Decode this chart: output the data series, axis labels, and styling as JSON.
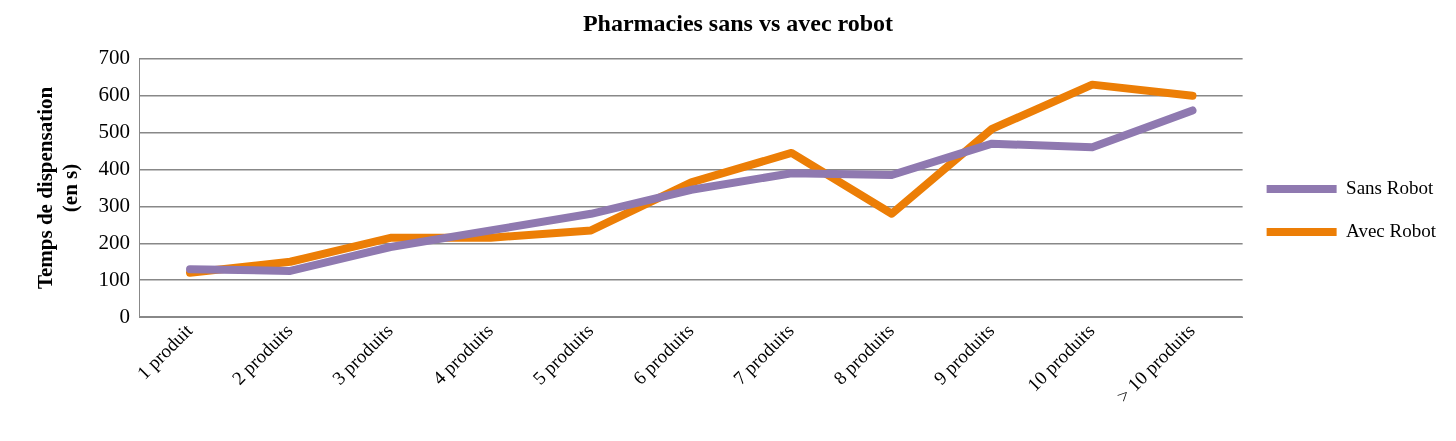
{
  "chart_data": {
    "type": "line",
    "title": "Pharmacies sans vs avec robot",
    "ylabel": "Temps de dispensation (en s)",
    "categories": [
      "1 produit",
      "2 produits",
      "3 produits",
      "4 produits",
      "5 produits",
      "6 produits",
      "7 produits",
      "8 produits",
      "9 produits",
      "10 produits",
      "> 10 produits"
    ],
    "series": [
      {
        "name": "Sans Robot",
        "color": "#8f79b0",
        "values": [
          130,
          125,
          190,
          235,
          280,
          345,
          390,
          385,
          470,
          460,
          560
        ]
      },
      {
        "name": "Avec Robot",
        "color": "#ec7e06",
        "values": [
          120,
          150,
          215,
          215,
          235,
          365,
          445,
          280,
          510,
          630,
          600
        ]
      }
    ],
    "ylim": [
      0,
      700
    ],
    "yticks": [
      0,
      100,
      200,
      300,
      400,
      500,
      600,
      700
    ],
    "grid": "y",
    "legend": "right",
    "marker": "none",
    "line_style": "solid"
  }
}
